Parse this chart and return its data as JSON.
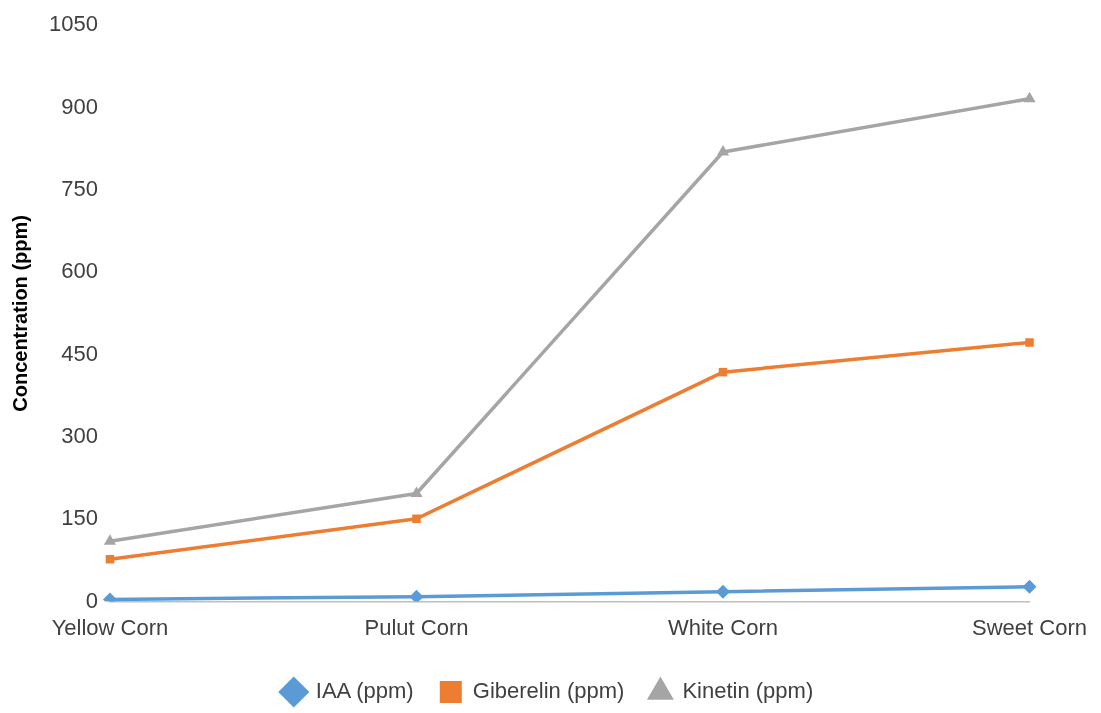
{
  "chart_data": {
    "type": "line",
    "ylabel": "Concentration (ppm)",
    "categories": [
      "Yellow Corn",
      "Pulut Corn",
      "White Corn",
      "Sweet Corn"
    ],
    "series": [
      {
        "name": "IAA (ppm)",
        "color": "#5b9bd5",
        "marker": "diamond",
        "values": [
          4,
          9,
          18,
          27
        ]
      },
      {
        "name": "Giberelin (ppm)",
        "color": "#ed7d31",
        "marker": "square",
        "values": [
          77,
          151,
          418,
          472
        ]
      },
      {
        "name": "Kinetin (ppm)",
        "color": "#a5a5a5",
        "marker": "triangle",
        "values": [
          110,
          197,
          819,
          916
        ]
      }
    ],
    "ylim": [
      0,
      1050
    ],
    "yticks": [
      0,
      150,
      300,
      450,
      600,
      750,
      900,
      1050
    ],
    "grid": false,
    "legend": "bottom",
    "line_style": "solid"
  }
}
